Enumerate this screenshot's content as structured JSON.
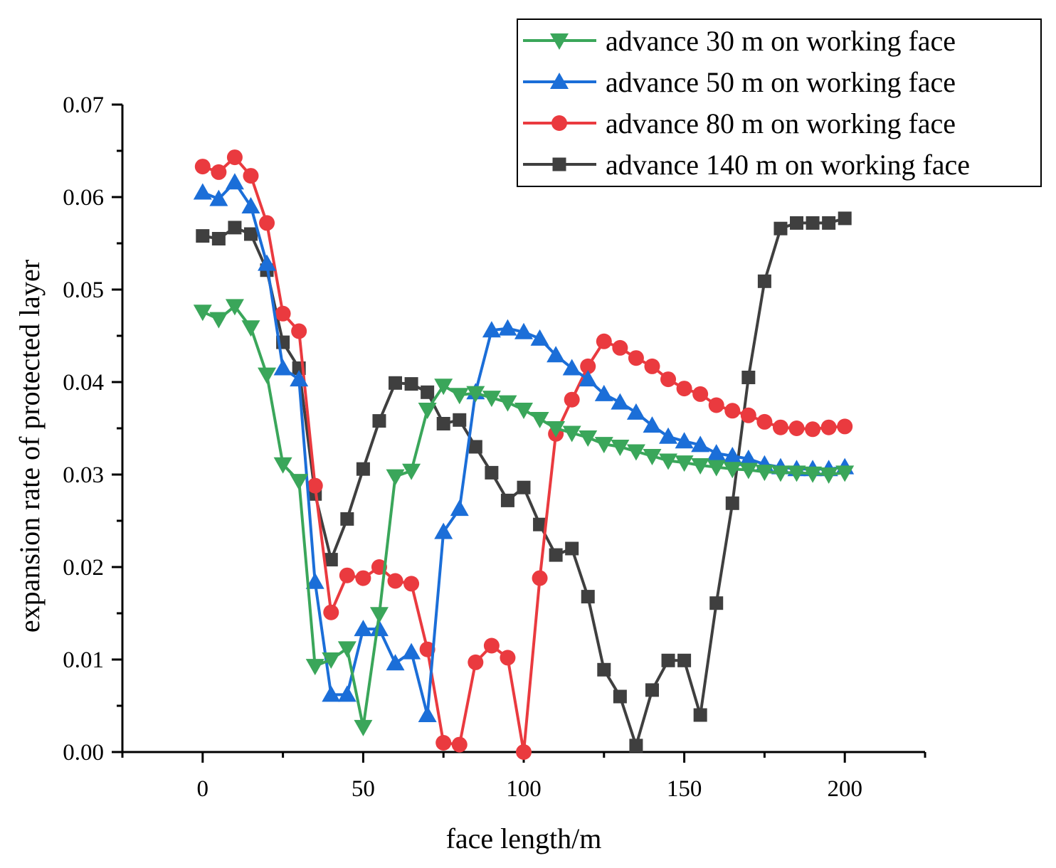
{
  "chart_data": {
    "type": "line",
    "title": "",
    "xlabel": "face length/m",
    "ylabel": "expansion rate of protected layer",
    "xlim": [
      -25,
      225
    ],
    "ylim": [
      0,
      0.07
    ],
    "xticks": [
      0,
      50,
      100,
      150,
      200
    ],
    "xtick_labels": [
      "0",
      "50",
      "100",
      "150",
      "200"
    ],
    "yticks": [
      0,
      0.01,
      0.02,
      0.03,
      0.04,
      0.05,
      0.06,
      0.07
    ],
    "ytick_labels": [
      "0.00",
      "0.01",
      "0.02",
      "0.03",
      "0.04",
      "0.05",
      "0.06",
      "0.07"
    ],
    "grid": false,
    "legend_position": "top-right",
    "x": [
      0,
      5,
      10,
      15,
      20,
      25,
      30,
      35,
      40,
      45,
      50,
      55,
      60,
      65,
      70,
      75,
      80,
      85,
      90,
      95,
      100,
      105,
      110,
      115,
      120,
      125,
      130,
      135,
      140,
      145,
      150,
      155,
      160,
      165,
      170,
      175,
      180,
      185,
      190,
      195,
      200
    ],
    "series": [
      {
        "name": "advance 30 m on working face",
        "color": "#3aa65a",
        "marker": "triangle-down",
        "values": [
          0.0476,
          0.0468,
          0.0482,
          0.0459,
          0.0408,
          0.0311,
          0.0293,
          0.0093,
          0.01,
          0.0112,
          0.0027,
          0.0149,
          0.0298,
          0.0304,
          0.037,
          0.0396,
          0.0386,
          0.0388,
          0.0383,
          0.0378,
          0.037,
          0.036,
          0.035,
          0.0345,
          0.034,
          0.0333,
          0.033,
          0.0325,
          0.032,
          0.0315,
          0.0313,
          0.031,
          0.0308,
          0.0306,
          0.0305,
          0.0303,
          0.0302,
          0.0302,
          0.0301,
          0.03,
          0.0302
        ]
      },
      {
        "name": "advance 50 m on working face",
        "color": "#1b6ed8",
        "marker": "triangle-up",
        "values": [
          0.0605,
          0.0598,
          0.0616,
          0.059,
          0.0528,
          0.0415,
          0.0403,
          0.0184,
          0.0062,
          0.0062,
          0.0133,
          0.0133,
          0.0096,
          0.0108,
          0.004,
          0.0238,
          0.0263,
          0.0389,
          0.0456,
          0.0458,
          0.0454,
          0.0447,
          0.0429,
          0.0415,
          0.0403,
          0.0387,
          0.0378,
          0.0367,
          0.0353,
          0.0341,
          0.0336,
          0.0332,
          0.0323,
          0.032,
          0.0317,
          0.0311,
          0.0308,
          0.0306,
          0.0306,
          0.0306,
          0.0308
        ]
      },
      {
        "name": "advance 80 m on working face",
        "color": "#ea3a3f",
        "marker": "circle",
        "values": [
          0.0633,
          0.0627,
          0.0643,
          0.0623,
          0.0572,
          0.0474,
          0.0455,
          0.0288,
          0.0151,
          0.0191,
          0.0188,
          0.02,
          0.0185,
          0.0182,
          0.0111,
          0.001,
          0.0008,
          0.0097,
          0.0115,
          0.0102,
          0.0,
          0.0188,
          0.0344,
          0.0381,
          0.0417,
          0.0444,
          0.0437,
          0.0426,
          0.0417,
          0.0403,
          0.0393,
          0.0387,
          0.0375,
          0.0369,
          0.0364,
          0.0357,
          0.0351,
          0.035,
          0.0349,
          0.0351,
          0.0352
        ]
      },
      {
        "name": "advance 140 m on working face",
        "color": "#3f3f3f",
        "marker": "square",
        "values": [
          0.0558,
          0.0555,
          0.0567,
          0.056,
          0.0521,
          0.0443,
          0.0415,
          0.0279,
          0.0208,
          0.0252,
          0.0306,
          0.0358,
          0.0399,
          0.0398,
          0.0389,
          0.0355,
          0.0359,
          0.033,
          0.0302,
          0.0272,
          0.0286,
          0.0246,
          0.0213,
          0.022,
          0.0168,
          0.0089,
          0.006,
          0.0007,
          0.0067,
          0.0099,
          0.0099,
          0.004,
          0.0161,
          0.0269,
          0.0405,
          0.0509,
          0.0566,
          0.0572,
          0.0572,
          0.0572,
          0.0577
        ]
      }
    ]
  }
}
